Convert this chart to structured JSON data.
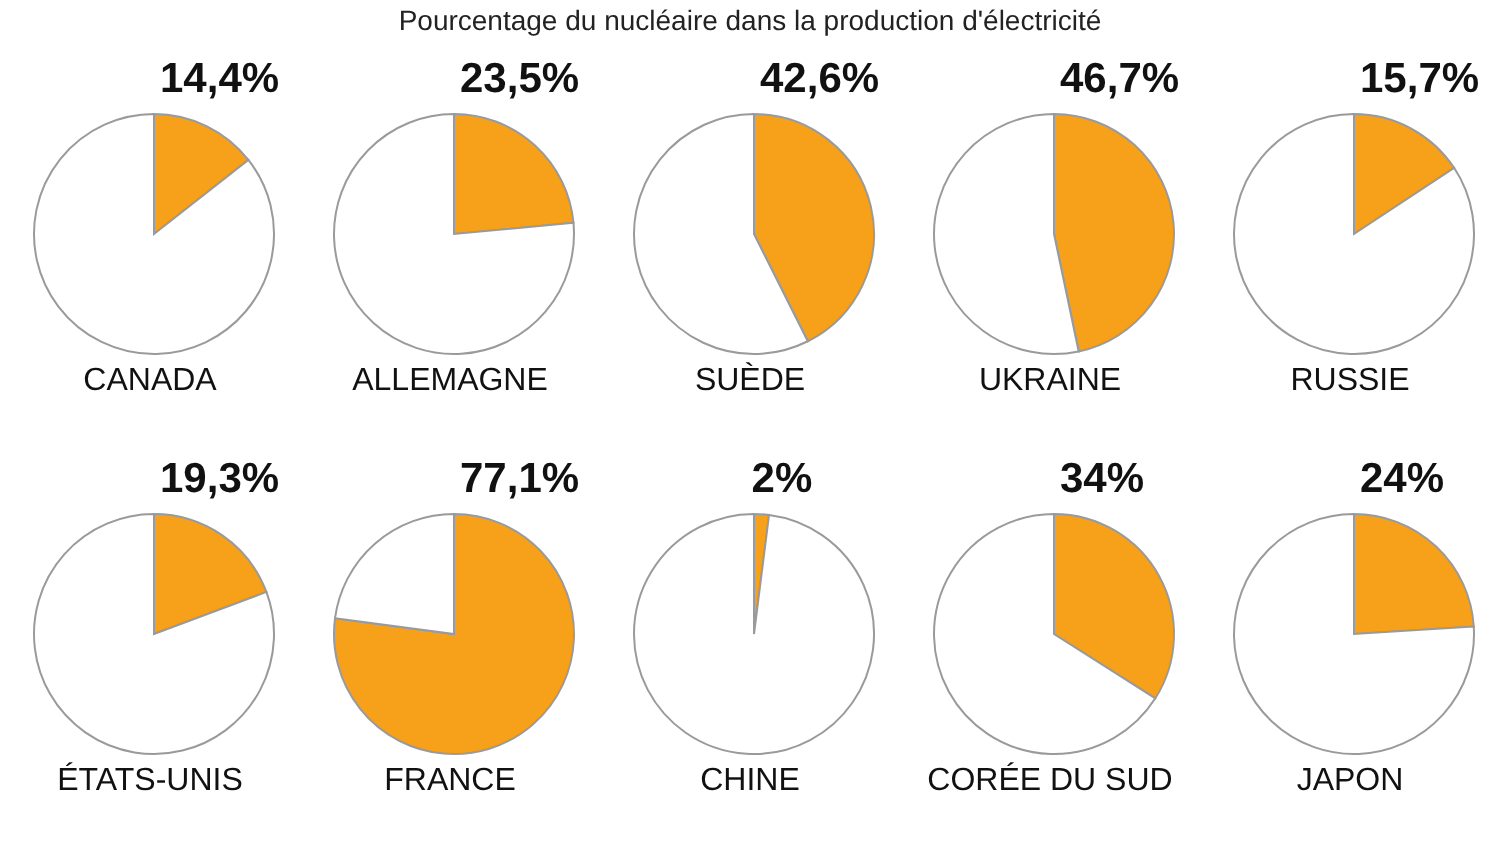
{
  "chart_data": [
    {
      "type": "pie",
      "title": "CANADA",
      "annotations": [
        "Pourcentage du nucléaire dans la production d'électricité"
      ],
      "categories": [
        null,
        null
      ],
      "values": [
        14.4,
        85.6
      ],
      "colors": [
        "#f7a11a",
        "#ffffff"
      ],
      "value_labels": [
        "14,4%",
        null
      ]
    },
    {
      "type": "pie",
      "title": "ALLEMAGNE",
      "categories": [
        null,
        null
      ],
      "values": [
        23.5,
        76.5
      ],
      "colors": [
        "#f7a11a",
        "#ffffff"
      ],
      "value_labels": [
        "23,5%",
        null
      ]
    },
    {
      "type": "pie",
      "title": "SUÈDE",
      "categories": [
        null,
        null
      ],
      "values": [
        42.6,
        57.4
      ],
      "colors": [
        "#f7a11a",
        "#ffffff"
      ],
      "value_labels": [
        "42,6%",
        null
      ]
    },
    {
      "type": "pie",
      "title": "UKRAINE",
      "categories": [
        null,
        null
      ],
      "values": [
        46.7,
        53.3
      ],
      "colors": [
        "#f7a11a",
        "#ffffff"
      ],
      "value_labels": [
        "46,7%",
        null
      ]
    },
    {
      "type": "pie",
      "title": "RUSSIE",
      "categories": [
        null,
        null
      ],
      "values": [
        15.7,
        84.3
      ],
      "colors": [
        "#f7a11a",
        "#ffffff"
      ],
      "value_labels": [
        "15,7%",
        null
      ]
    },
    {
      "type": "pie",
      "title": "ÉTATS-UNIS",
      "categories": [
        null,
        null
      ],
      "values": [
        19.3,
        80.7
      ],
      "colors": [
        "#f7a11a",
        "#ffffff"
      ],
      "value_labels": [
        "19,3%",
        null
      ]
    },
    {
      "type": "pie",
      "title": "FRANCE",
      "categories": [
        null,
        null
      ],
      "values": [
        77.1,
        22.9
      ],
      "colors": [
        "#f7a11a",
        "#ffffff"
      ],
      "value_labels": [
        "77,1%",
        null
      ]
    },
    {
      "type": "pie",
      "title": "CHINE",
      "categories": [
        null,
        null
      ],
      "values": [
        2,
        98
      ],
      "colors": [
        "#f7a11a",
        "#ffffff"
      ],
      "value_labels": [
        "2%",
        null
      ]
    },
    {
      "type": "pie",
      "title": "CORÉE DU SUD",
      "categories": [
        null,
        null
      ],
      "values": [
        34,
        66
      ],
      "colors": [
        "#f7a11a",
        "#ffffff"
      ],
      "value_labels": [
        "34%",
        null
      ]
    },
    {
      "type": "pie",
      "title": "JAPON",
      "categories": [
        null,
        null
      ],
      "values": [
        24,
        76
      ],
      "colors": [
        "#f7a11a",
        "#ffffff"
      ],
      "value_labels": [
        "24%",
        null
      ]
    }
  ]
}
